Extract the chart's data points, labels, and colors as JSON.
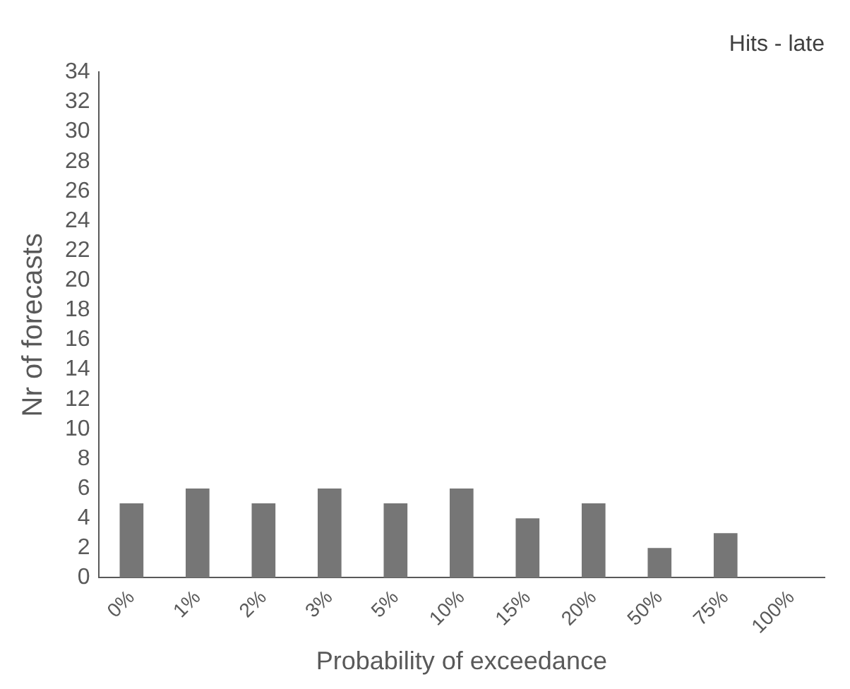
{
  "chart_data": {
    "type": "bar",
    "title": "Hits - late",
    "xlabel": "Probability of exceedance",
    "ylabel": "Nr of forecasts",
    "categories": [
      "0%",
      "1%",
      "2%",
      "3%",
      "5%",
      "10%",
      "15%",
      "20%",
      "50%",
      "75%",
      "100%"
    ],
    "values": [
      5,
      6,
      5,
      6,
      5,
      6,
      4,
      5,
      2,
      3,
      0
    ],
    "color": "#767676",
    "ylim": [
      0,
      34
    ],
    "yticks": [
      0,
      2,
      4,
      6,
      8,
      10,
      12,
      14,
      16,
      18,
      20,
      22,
      24,
      26,
      28,
      30,
      32,
      34
    ],
    "grid": false,
    "legend": false
  }
}
